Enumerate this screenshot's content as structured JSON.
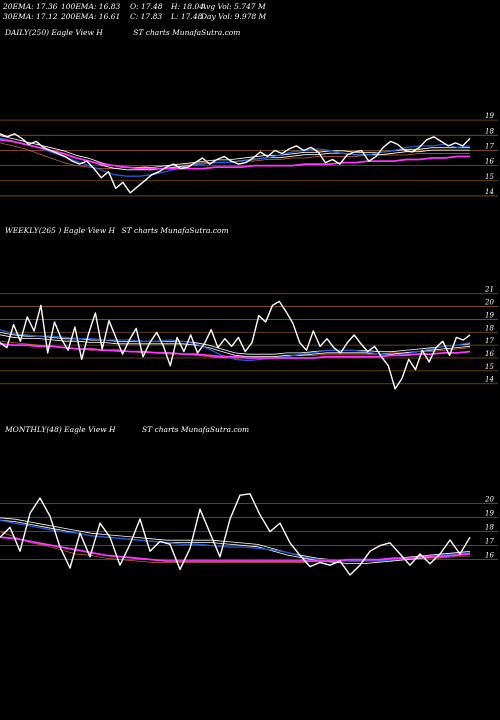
{
  "header": {
    "row1": [
      "20EMA: 17.36",
      "100EMA: 16.83",
      "O: 17.48",
      "H: 18.04",
      "Avg Vol: 5.747 M"
    ],
    "row2": [
      "30EMA: 17.12",
      "200EMA: 16.61",
      "C: 17.83",
      "L: 17.48",
      "Day Vol: 9.978 M"
    ]
  },
  "labels": {
    "daily": "DAILY(250) Eagle   View   H",
    "weekly": "WEEKLY(265                ) Eagle   View   H",
    "monthly": "MONTHLY(48) Eagle   View   H",
    "watermark": "ST charts MunafaSutra.com"
  },
  "colors": {
    "price": "#ffffff",
    "ema_short": "#1f5bd8",
    "ema_long": "#ff33ff",
    "ema_mid": "#ffffff",
    "ema_orange": "#cc6633",
    "grid": "#8a5418"
  },
  "chart_data": [
    {
      "type": "line",
      "title": "DAILY(250)",
      "ylim": [
        13.6,
        19.8
      ],
      "yticks": [
        "19",
        "18",
        "17",
        "16",
        "15",
        "14"
      ],
      "n": 250,
      "series": [
        {
          "role": "price",
          "values": [
            18.1,
            17.9,
            18.1,
            17.8,
            17.4,
            17.6,
            17.2,
            17.0,
            16.8,
            16.6,
            16.3,
            16.1,
            16.3,
            15.8,
            15.2,
            15.6,
            14.5,
            14.9,
            14.2,
            14.6,
            15.0,
            15.4,
            15.6,
            15.9,
            16.1,
            15.8,
            15.9,
            16.2,
            16.5,
            16.1,
            16.4,
            16.6,
            16.3,
            16.1,
            16.2,
            16.5,
            16.9,
            16.6,
            17.0,
            16.8,
            17.1,
            17.3,
            17.0,
            17.2,
            16.9,
            16.2,
            16.4,
            16.1,
            16.7,
            16.9,
            17.0,
            16.3,
            16.6,
            17.2,
            17.6,
            17.4,
            17.0,
            16.9,
            17.2,
            17.7,
            17.9,
            17.6,
            17.3,
            17.5,
            17.3,
            17.8
          ]
        },
        {
          "role": "ema_short",
          "values": [
            17.8,
            17.6,
            17.4,
            17.2,
            16.9,
            16.6,
            16.3,
            16.0,
            15.7,
            15.4,
            15.3,
            15.3,
            15.4,
            15.6,
            15.8,
            16.0,
            16.1,
            16.2,
            16.2,
            16.3,
            16.4,
            16.5,
            16.7,
            16.9,
            17.0,
            17.1,
            17.0,
            16.8,
            16.7,
            16.7,
            16.9,
            17.0,
            17.2,
            17.3,
            17.3,
            17.4,
            17.2,
            17.3
          ]
        },
        {
          "role": "ema_mid",
          "values": [
            17.9,
            17.7,
            17.5,
            17.3,
            17.1,
            16.9,
            16.6,
            16.4,
            16.1,
            15.9,
            15.8,
            15.8,
            15.8,
            15.9,
            16.0,
            16.1,
            16.2,
            16.3,
            16.3,
            16.4,
            16.5,
            16.6,
            16.6,
            16.7,
            16.8,
            16.8,
            16.9,
            16.9,
            16.8,
            16.8,
            16.8,
            16.9,
            17.0,
            17.0,
            17.1,
            17.1,
            17.1,
            17.1
          ]
        },
        {
          "role": "ema_orange",
          "values": [
            17.5,
            17.3,
            17.1,
            16.8,
            16.5,
            16.2,
            16.0,
            15.9,
            15.8,
            15.8,
            15.9,
            15.9,
            16.0,
            16.0,
            16.1,
            16.1,
            16.2,
            16.2,
            16.2,
            16.3,
            16.3,
            16.4,
            16.4,
            16.5,
            16.5,
            16.6,
            16.6,
            16.6,
            16.6,
            16.7,
            16.7,
            16.7,
            16.7,
            16.8,
            16.8,
            16.8,
            16.8,
            16.8
          ]
        },
        {
          "role": "ema_long",
          "values": [
            17.7,
            17.6,
            17.4,
            17.2,
            17.0,
            16.8,
            16.5,
            16.3,
            16.1,
            16.0,
            15.9,
            15.8,
            15.8,
            15.8,
            15.8,
            15.8,
            15.8,
            15.9,
            15.9,
            15.9,
            16.0,
            16.0,
            16.0,
            16.0,
            16.1,
            16.1,
            16.1,
            16.2,
            16.2,
            16.3,
            16.3,
            16.3,
            16.4,
            16.4,
            16.5,
            16.5,
            16.6,
            16.6
          ]
        }
      ]
    },
    {
      "type": "line",
      "title": "WEEKLY(265)",
      "ylim": [
        13.2,
        21.6
      ],
      "yticks": [
        "21",
        "20",
        "19",
        "18",
        "17",
        "16",
        "15",
        "14"
      ],
      "n": 265,
      "series": [
        {
          "role": "price",
          "values": [
            17.2,
            16.8,
            18.6,
            17.3,
            19.2,
            18.1,
            20.1,
            16.4,
            18.8,
            17.5,
            16.6,
            18.4,
            15.9,
            17.9,
            19.5,
            16.7,
            18.9,
            17.6,
            16.3,
            17.4,
            18.3,
            16.1,
            17.2,
            18.0,
            16.9,
            15.4,
            17.6,
            16.5,
            17.8,
            16.4,
            17.1,
            18.2,
            16.8,
            17.5,
            16.9,
            17.6,
            16.5,
            17.2,
            19.3,
            18.8,
            20.1,
            20.4,
            19.6,
            18.7,
            17.2,
            16.6,
            18.1,
            16.9,
            17.5,
            16.8,
            16.4,
            17.2,
            17.8,
            17.1,
            16.5,
            16.9,
            16.1,
            15.4,
            13.6,
            14.4,
            15.9,
            15.1,
            16.6,
            15.7,
            16.8,
            17.3,
            16.2,
            17.6,
            17.4,
            17.8
          ]
        },
        {
          "role": "ema_short",
          "values": [
            18.2,
            17.9,
            17.8,
            17.7,
            17.7,
            17.6,
            17.5,
            17.5,
            17.4,
            17.4,
            17.4,
            17.3,
            17.3,
            17.4,
            17.3,
            17.1,
            16.7,
            16.2,
            15.9,
            15.8,
            15.9,
            16.0,
            16.1,
            16.3,
            16.4,
            16.6,
            16.6,
            16.6,
            16.5,
            16.3,
            16.2,
            16.3,
            16.5,
            16.7,
            16.9,
            17.0,
            17.2
          ]
        },
        {
          "role": "ema_mid",
          "values": [
            17.9,
            17.7,
            17.6,
            17.6,
            17.5,
            17.4,
            17.4,
            17.3,
            17.3,
            17.2,
            17.2,
            17.2,
            17.2,
            17.2,
            17.2,
            17.1,
            16.9,
            16.6,
            16.3,
            16.2,
            16.2,
            16.2,
            16.3,
            16.3,
            16.4,
            16.5,
            16.5,
            16.5,
            16.5,
            16.4,
            16.4,
            16.5,
            16.6,
            16.7,
            16.8,
            16.9,
            17.0
          ]
        },
        {
          "role": "ema_orange",
          "values": [
            17.3,
            17.2,
            17.1,
            17.0,
            16.9,
            16.8,
            16.7,
            16.6,
            16.6,
            16.5,
            16.5,
            16.4,
            16.4,
            16.3,
            16.3,
            16.2,
            16.1,
            16.0,
            16.0,
            16.0,
            16.1,
            16.1,
            16.2,
            16.2,
            16.2,
            16.3,
            16.3,
            16.3,
            16.3,
            16.3,
            16.4,
            16.4,
            16.5,
            16.5,
            16.6,
            16.7,
            16.8
          ]
        },
        {
          "role": "ema_long",
          "values": [
            17.1,
            17.0,
            17.0,
            16.9,
            16.9,
            16.8,
            16.7,
            16.7,
            16.6,
            16.6,
            16.5,
            16.5,
            16.4,
            16.4,
            16.3,
            16.3,
            16.2,
            16.1,
            16.1,
            16.0,
            16.0,
            16.0,
            16.0,
            16.0,
            16.0,
            16.1,
            16.1,
            16.1,
            16.1,
            16.1,
            16.2,
            16.2,
            16.3,
            16.3,
            16.4,
            16.4,
            16.5
          ]
        }
      ]
    },
    {
      "type": "line",
      "title": "MONTHLY(48)",
      "ylim": [
        14.4,
        21.4
      ],
      "yticks": [
        "20",
        "19",
        "18",
        "17",
        "16"
      ],
      "n": 48,
      "series": [
        {
          "role": "price",
          "values": [
            17.6,
            18.3,
            16.6,
            19.3,
            20.4,
            19.1,
            16.9,
            15.4,
            17.9,
            16.2,
            18.6,
            17.6,
            15.6,
            17.1,
            18.9,
            16.6,
            17.3,
            17.1,
            15.3,
            16.8,
            19.6,
            17.9,
            16.2,
            18.9,
            20.6,
            20.7,
            19.2,
            18.0,
            18.6,
            17.2,
            16.3,
            15.5,
            15.8,
            15.6,
            15.9,
            14.9,
            15.6,
            16.6,
            17.0,
            17.2,
            16.4,
            15.6,
            16.4,
            15.7,
            16.4,
            17.4,
            16.4,
            17.6
          ]
        },
        {
          "role": "ema_short",
          "values": [
            18.8,
            18.6,
            18.4,
            18.2,
            18.0,
            17.9,
            17.7,
            17.6,
            17.5,
            17.4,
            17.3,
            17.2,
            17.1,
            17.1,
            17.0,
            16.9,
            16.9,
            16.8,
            16.7,
            16.5,
            16.2,
            16.0,
            16.0,
            15.9,
            15.9,
            15.9,
            16.0,
            16.1,
            16.2,
            16.3,
            16.4,
            16.5
          ]
        },
        {
          "role": "ema_mid",
          "values": [
            18.9,
            18.8,
            18.6,
            18.4,
            18.2,
            18.0,
            17.8,
            17.7,
            17.6,
            17.5,
            17.4,
            17.3,
            17.3,
            17.3,
            17.3,
            17.2,
            17.1,
            17.0,
            16.7,
            16.4,
            16.2,
            16.0,
            15.9,
            15.8,
            15.8,
            15.9,
            16.0,
            16.1,
            16.2,
            16.3,
            16.4,
            16.5
          ]
        },
        {
          "role": "ema_orange",
          "values": [
            18.0,
            17.6,
            17.2,
            17.0,
            16.7,
            16.4,
            16.3,
            16.1,
            16.0,
            15.9,
            15.8,
            15.8,
            15.8,
            15.8,
            15.8,
            15.8,
            15.8,
            15.8,
            15.8,
            15.8,
            15.8,
            15.9,
            15.9,
            15.9,
            16.0,
            16.0,
            16.0,
            16.1,
            16.1,
            16.1,
            16.2,
            16.2
          ]
        },
        {
          "role": "ema_long",
          "values": [
            17.6,
            17.5,
            17.3,
            17.1,
            16.9,
            16.7,
            16.5,
            16.3,
            16.2,
            16.1,
            16.0,
            15.9,
            15.9,
            15.9,
            15.9,
            15.9,
            15.9,
            15.9,
            15.9,
            15.9,
            15.9,
            15.9,
            15.9,
            16.0,
            16.0,
            16.0,
            16.1,
            16.1,
            16.2,
            16.2,
            16.3,
            16.4
          ]
        }
      ]
    }
  ]
}
